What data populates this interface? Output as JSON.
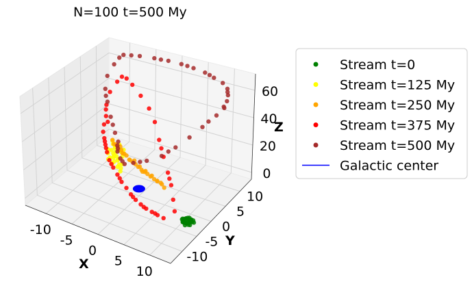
{
  "chart_data": {
    "type": "scatter",
    "title": "N=100 t=500 My",
    "axes": {
      "x": {
        "label": "X",
        "ticks": [
          -10,
          -5,
          0,
          5,
          10
        ],
        "tick_labels": [
          "-10",
          "-5",
          "0",
          "5",
          "10"
        ],
        "range": [
          -14,
          14
        ]
      },
      "y": {
        "label": "Y",
        "ticks": [
          -10,
          -5,
          0,
          5,
          10
        ],
        "tick_labels": [
          "-10",
          "-5",
          "0",
          "5",
          "10"
        ],
        "range": [
          -14,
          14
        ]
      },
      "z": {
        "label": "Z",
        "ticks": [
          0,
          20,
          40,
          60
        ],
        "tick_labels": [
          "0",
          "20",
          "40",
          "60"
        ],
        "range": [
          -5,
          72
        ]
      }
    },
    "grid": true,
    "legend_position": "right",
    "series": [
      {
        "name": "Stream t=0",
        "color": "#008000",
        "marker": "dot",
        "points": [
          [
            11.2,
            -4.0,
            0
          ],
          [
            11.6,
            -3.6,
            0.8
          ],
          [
            12.0,
            -4.4,
            0
          ],
          [
            11.0,
            -3.2,
            -0.6
          ],
          [
            12.3,
            -3.9,
            0.5
          ],
          [
            11.4,
            -4.7,
            0.3
          ],
          [
            11.9,
            -3.1,
            -0.4
          ],
          [
            10.8,
            -4.3,
            0.9
          ],
          [
            12.5,
            -4.6,
            -0.2
          ],
          [
            11.3,
            -3.8,
            1.2
          ],
          [
            12.1,
            -3.4,
            0.6
          ],
          [
            11.7,
            -4.9,
            -0.7
          ],
          [
            10.9,
            -3.7,
            0.1
          ],
          [
            12.4,
            -3.3,
            0.2
          ],
          [
            11.5,
            -4.2,
            -1.0
          ],
          [
            12.2,
            -4.1,
            1.0
          ],
          [
            11.1,
            -4.5,
            -0.3
          ],
          [
            11.8,
            -3.5,
            0.4
          ],
          [
            12.6,
            -4.0,
            0.7
          ],
          [
            11.6,
            -4.4,
            -0.5
          ],
          [
            10.7,
            -3.9,
            0.4
          ],
          [
            12.0,
            -3.7,
            -0.8
          ],
          [
            11.4,
            -3.4,
            0.9
          ],
          [
            12.3,
            -4.8,
            0.1
          ],
          [
            11.2,
            -4.8,
            0.6
          ],
          [
            11.9,
            -4.3,
            -0.1
          ],
          [
            11.5,
            -3.0,
            0.2
          ],
          [
            12.7,
            -3.6,
            -0.3
          ],
          [
            11.0,
            -4.1,
            -0.9
          ],
          [
            11.8,
            -3.9,
            1.4
          ]
        ]
      },
      {
        "name": "Stream t=125 My",
        "color": "#ffff00",
        "marker": "dot",
        "points": [
          [
            -5.2,
            1.5,
            14
          ],
          [
            -5.8,
            2.2,
            15
          ],
          [
            -4.6,
            0.8,
            13
          ],
          [
            -6.3,
            2.9,
            16
          ],
          [
            -3.9,
            0.2,
            12
          ],
          [
            -7.0,
            3.5,
            17
          ],
          [
            -5.5,
            1.0,
            13.5
          ],
          [
            -4.9,
            2.6,
            15.5
          ],
          [
            -6.0,
            1.8,
            14.5
          ],
          [
            -3.2,
            -0.5,
            11.5
          ],
          [
            -6.7,
            2.4,
            15
          ],
          [
            -5.0,
            0.4,
            12.5
          ],
          [
            -4.3,
            1.9,
            14
          ],
          [
            -7.4,
            4.0,
            18
          ],
          [
            -5.7,
            3.1,
            16.5
          ],
          [
            -4.0,
            -0.2,
            11
          ],
          [
            -6.1,
            0.9,
            13
          ],
          [
            -5.3,
            2.8,
            16
          ],
          [
            -6.9,
            1.6,
            14
          ],
          [
            -4.7,
            1.3,
            13
          ],
          [
            -3.6,
            0.6,
            12
          ],
          [
            -5.9,
            3.7,
            17.5
          ],
          [
            -4.4,
            2.5,
            15
          ],
          [
            -6.5,
            3.3,
            16
          ],
          [
            -5.1,
            0.0,
            12
          ],
          [
            -7.2,
            2.1,
            15.5
          ],
          [
            -3.0,
            -1.0,
            10.5
          ],
          [
            -5.6,
            1.4,
            14
          ],
          [
            -4.8,
            3.2,
            16
          ],
          [
            -6.2,
            0.5,
            12.5
          ]
        ]
      },
      {
        "name": "Stream t=250 My",
        "color": "#ffa500",
        "marker": "dot",
        "points": [
          [
            -2.0,
            -4.0,
            36
          ],
          [
            -1.0,
            -4.8,
            35
          ],
          [
            0.5,
            -5.5,
            35
          ],
          [
            2.0,
            -6.3,
            34
          ],
          [
            3.5,
            -7.0,
            34
          ],
          [
            5.0,
            -7.6,
            33
          ],
          [
            6.5,
            -8.2,
            33
          ],
          [
            8.0,
            -8.6,
            32
          ],
          [
            9.5,
            -9.0,
            32
          ],
          [
            -3.0,
            -3.4,
            37
          ],
          [
            -0.3,
            -5.1,
            36
          ],
          [
            1.2,
            -6.0,
            35.5
          ],
          [
            2.8,
            -6.8,
            34.5
          ],
          [
            4.2,
            -7.3,
            33.5
          ],
          [
            5.8,
            -7.9,
            33
          ],
          [
            7.2,
            -8.4,
            32.5
          ],
          [
            8.7,
            -8.8,
            32
          ],
          [
            -1.5,
            -4.4,
            36.5
          ],
          [
            3.0,
            -6.5,
            35
          ],
          [
            6.0,
            -8.0,
            34
          ],
          [
            9.0,
            -9.3,
            33
          ],
          [
            10.5,
            -9.6,
            31
          ],
          [
            -2.5,
            -3.8,
            35.5
          ],
          [
            0.0,
            -5.3,
            34.5
          ],
          [
            4.6,
            -7.5,
            34.5
          ],
          [
            7.5,
            -8.5,
            33.5
          ],
          [
            1.8,
            -6.1,
            33.5
          ],
          [
            10.0,
            -9.5,
            32.5
          ],
          [
            -0.8,
            -4.6,
            37
          ],
          [
            5.3,
            -7.8,
            32.5
          ]
        ]
      },
      {
        "name": "Stream t=375 My",
        "color": "#ff0000",
        "marker": "dot",
        "points": [
          [
            -11.0,
            8.0,
            25
          ],
          [
            -10.5,
            6.5,
            22
          ],
          [
            -9.8,
            5.0,
            20
          ],
          [
            -9.0,
            4.0,
            18
          ],
          [
            -8.2,
            3.0,
            16
          ],
          [
            -7.2,
            1.8,
            14
          ],
          [
            -6.0,
            0.5,
            12
          ],
          [
            -4.5,
            -0.8,
            11
          ],
          [
            -3.0,
            -2.0,
            10
          ],
          [
            -1.5,
            -3.2,
            9
          ],
          [
            0.0,
            -4.2,
            8.5
          ],
          [
            1.5,
            -5.3,
            8
          ],
          [
            3.0,
            -6.3,
            8
          ],
          [
            4.5,
            -7.2,
            8.5
          ],
          [
            6.0,
            -8.0,
            9
          ],
          [
            7.5,
            -8.7,
            10
          ],
          [
            9.0,
            -9.4,
            11
          ],
          [
            10.5,
            -10.0,
            12
          ],
          [
            -11.8,
            9.5,
            30
          ],
          [
            -12.0,
            11.0,
            37
          ],
          [
            -11.2,
            12.0,
            44
          ],
          [
            -10.0,
            11.5,
            50
          ],
          [
            -8.5,
            10.5,
            52
          ],
          [
            -6.5,
            9.0,
            52
          ],
          [
            -4.0,
            7.5,
            49
          ],
          [
            -1.5,
            6.0,
            45
          ],
          [
            0.5,
            4.5,
            40
          ],
          [
            2.5,
            2.5,
            33
          ],
          [
            4.5,
            0.5,
            27
          ],
          [
            6.5,
            -1.5,
            22
          ],
          [
            8.0,
            -3.0,
            18
          ],
          [
            9.8,
            -5.5,
            15
          ],
          [
            11.5,
            -8.0,
            14
          ],
          [
            -10.2,
            7.2,
            23
          ],
          [
            -8.6,
            3.5,
            17
          ],
          [
            -5.2,
            -0.2,
            11.5
          ],
          [
            -2.2,
            -2.6,
            9.5
          ],
          [
            2.2,
            -5.8,
            8
          ],
          [
            5.3,
            -7.6,
            8.5
          ],
          [
            8.3,
            -9.0,
            10.5
          ],
          [
            -11.5,
            8.8,
            28
          ],
          [
            3.5,
            1.5,
            30
          ],
          [
            7.2,
            -2.2,
            20
          ],
          [
            -7.8,
            2.5,
            15
          ]
        ]
      },
      {
        "name": "Stream t=500 My",
        "color": "#a52a2a",
        "marker": "dot",
        "points": [
          [
            -10.0,
            12.0,
            66
          ],
          [
            -7.5,
            13.0,
            66
          ],
          [
            -5.0,
            13.5,
            66
          ],
          [
            -2.5,
            13.8,
            66
          ],
          [
            0.0,
            13.8,
            66
          ],
          [
            2.5,
            13.5,
            66
          ],
          [
            5.0,
            13.0,
            66
          ],
          [
            7.0,
            12.5,
            65
          ],
          [
            9.0,
            12.0,
            64
          ],
          [
            10.5,
            11.0,
            63
          ],
          [
            11.5,
            9.5,
            62
          ],
          [
            12.2,
            8.0,
            61
          ],
          [
            12.5,
            6.5,
            60
          ],
          [
            12.0,
            5.0,
            56
          ],
          [
            10.8,
            2.5,
            51
          ],
          [
            9.5,
            0.5,
            46
          ],
          [
            8.0,
            -1.5,
            41
          ],
          [
            6.5,
            -3.5,
            37
          ],
          [
            4.5,
            -5.0,
            34
          ],
          [
            2.5,
            -6.0,
            32
          ],
          [
            0.5,
            -5.5,
            28
          ],
          [
            -1.5,
            -3.5,
            26
          ],
          [
            -3.5,
            -1.0,
            24
          ],
          [
            -5.0,
            1.5,
            22
          ],
          [
            -6.0,
            3.5,
            20
          ],
          [
            -7.5,
            5.0,
            22
          ],
          [
            -9.5,
            7.0,
            28
          ],
          [
            -11.0,
            8.5,
            35
          ],
          [
            -12.0,
            9.5,
            42
          ],
          [
            -12.2,
            10.5,
            50
          ],
          [
            -11.5,
            11.5,
            58
          ],
          [
            -10.8,
            12.0,
            63
          ],
          [
            -8.8,
            12.5,
            66
          ],
          [
            -3.8,
            13.6,
            66
          ],
          [
            1.2,
            13.7,
            66
          ],
          [
            6.0,
            12.8,
            65.5
          ],
          [
            11.0,
            10.2,
            62.5
          ],
          [
            12.3,
            7.0,
            58
          ],
          [
            11.2,
            3.8,
            53
          ],
          [
            7.2,
            -2.5,
            39
          ],
          [
            3.5,
            -5.5,
            33
          ],
          [
            -0.5,
            -4.5,
            27
          ],
          [
            -4.2,
            0.3,
            23
          ],
          [
            -8.5,
            6.0,
            25
          ],
          [
            -11.6,
            9.0,
            38
          ]
        ]
      },
      {
        "name": "Galactic center",
        "color": "#0000ff",
        "marker": "line",
        "points": [
          [
            0,
            0,
            0
          ]
        ]
      }
    ]
  }
}
